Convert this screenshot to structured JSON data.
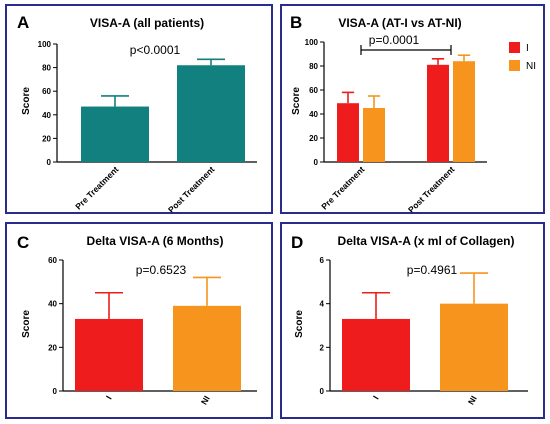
{
  "colors": {
    "teal": "#12807f",
    "red": "#ee1c1c",
    "orange": "#f7941d",
    "border": "#2b2b8c"
  },
  "chart_data": [
    {
      "panel_letter": "A",
      "type": "bar",
      "title": "VISA-A (all patients)",
      "annotation": "p<0.0001",
      "ylabel": "Score",
      "ylim": [
        0,
        100
      ],
      "yticks": [
        0,
        20,
        40,
        60,
        80,
        100
      ],
      "categories": [
        "Pre Treatment",
        "Post Treatment"
      ],
      "series": [
        {
          "values": [
            47,
            82
          ],
          "errors": [
            9,
            5
          ],
          "color": "#12807f"
        }
      ]
    },
    {
      "panel_letter": "B",
      "type": "bar",
      "title": "VISA-A (AT-I vs AT-NI)",
      "annotation": "p=0.0001",
      "ylabel": "Score",
      "ylim": [
        0,
        100
      ],
      "yticks": [
        0,
        20,
        40,
        60,
        80,
        100
      ],
      "categories": [
        "Pre Treatment",
        "Post Treatment"
      ],
      "series": [
        {
          "name": "I",
          "values": [
            49,
            81
          ],
          "errors": [
            9,
            5
          ],
          "color": "#ee1c1c"
        },
        {
          "name": "NI",
          "values": [
            45,
            84
          ],
          "errors": [
            10,
            5
          ],
          "color": "#f7941d"
        }
      ],
      "legend": "right"
    },
    {
      "panel_letter": "C",
      "type": "bar",
      "title": "Delta VISA-A (6 Months)",
      "annotation": "p=0.6523",
      "ylabel": "Score",
      "ylim": [
        0,
        60
      ],
      "yticks": [
        0,
        20,
        40,
        60
      ],
      "categories": [
        "I",
        "NI"
      ],
      "series": [
        {
          "values": [
            33,
            39
          ],
          "errors": [
            12,
            13
          ],
          "colors": [
            "#ee1c1c",
            "#f7941d"
          ]
        }
      ]
    },
    {
      "panel_letter": "D",
      "type": "bar",
      "title": "Delta VISA-A (x ml of Collagen)",
      "annotation": "p=0.4961",
      "ylabel": "Score",
      "ylim": [
        0,
        6
      ],
      "yticks": [
        0,
        2,
        4,
        6
      ],
      "categories": [
        "I",
        "NI"
      ],
      "series": [
        {
          "values": [
            3.3,
            4.0
          ],
          "errors": [
            1.2,
            1.4
          ],
          "colors": [
            "#ee1c1c",
            "#f7941d"
          ]
        }
      ]
    }
  ]
}
